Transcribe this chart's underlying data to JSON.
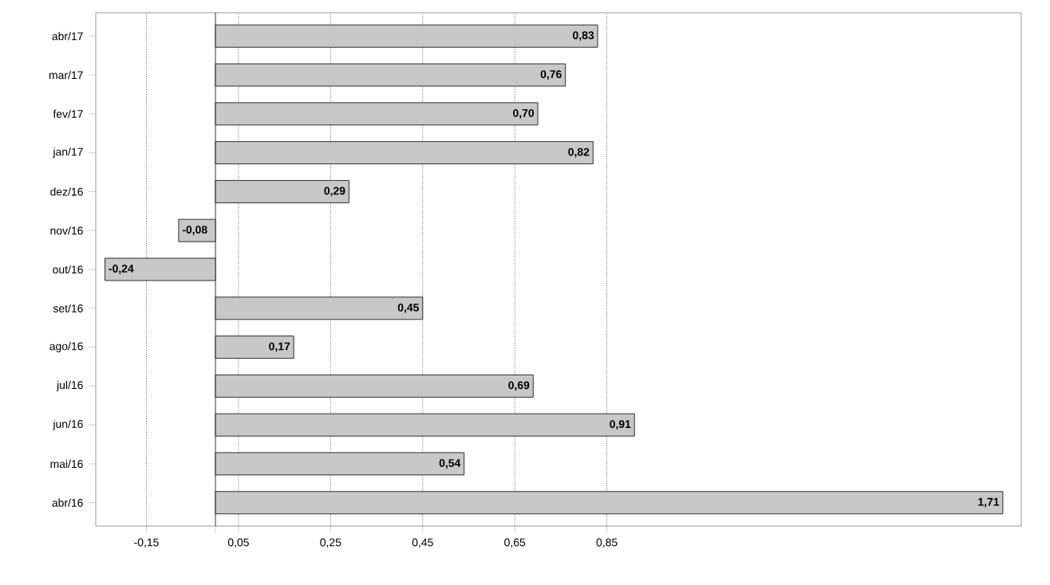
{
  "chart_data": {
    "type": "bar",
    "orientation": "horizontal",
    "categories": [
      "abr/17",
      "mar/17",
      "fev/17",
      "jan/17",
      "dez/16",
      "nov/16",
      "out/16",
      "set/16",
      "ago/16",
      "jul/16",
      "jun/16",
      "mai/16",
      "abr/16"
    ],
    "values": [
      0.83,
      0.76,
      0.7,
      0.82,
      0.29,
      -0.08,
      -0.24,
      0.45,
      0.17,
      0.69,
      0.91,
      0.54,
      1.71
    ],
    "value_labels": [
      "0,83",
      "0,76",
      "0,70",
      "0,82",
      "0,29",
      "-0,08",
      "-0,24",
      "0,45",
      "0,17",
      "0,69",
      "0,91",
      "0,54",
      "1,71"
    ],
    "color": "#c8c8c8",
    "xlim": [
      -0.26,
      1.75
    ],
    "xticks": [
      {
        "value": -0.15,
        "label": "-0,15"
      },
      {
        "value": 0.05,
        "label": "0,05"
      },
      {
        "value": 0.25,
        "label": "0,25"
      },
      {
        "value": 0.45,
        "label": "0,45"
      },
      {
        "value": 0.65,
        "label": "0,65"
      },
      {
        "value": 0.85,
        "label": "0,85"
      }
    ],
    "grid": "x"
  }
}
